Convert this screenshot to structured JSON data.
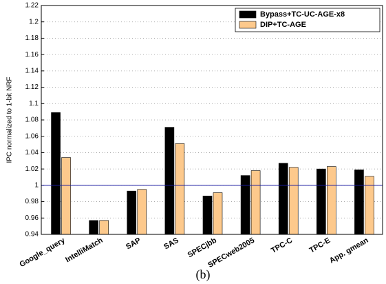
{
  "chart_data": {
    "type": "bar",
    "ylabel": "IPC normalized to 1-bit NRF",
    "caption": "(b)",
    "categories": [
      "Google_query",
      "IntelliMatch",
      "SAP",
      "SAS",
      "SPECjbb",
      "SPECweb2005",
      "TPC-C",
      "TPC-E",
      "App. gmean"
    ],
    "series": [
      {
        "name": "Bypass+TC-UC-AGE-x8",
        "color": "#000000",
        "values": [
          1.089,
          0.957,
          0.993,
          1.071,
          0.987,
          1.012,
          1.027,
          1.02,
          1.019
        ]
      },
      {
        "name": "DIP+TC-AGE",
        "color": "#fdc98c",
        "values": [
          1.034,
          0.957,
          0.995,
          1.051,
          0.991,
          1.018,
          1.022,
          1.023,
          1.011
        ]
      }
    ],
    "ylim": [
      0.94,
      1.22
    ],
    "yticks": [
      0.94,
      0.96,
      0.98,
      1,
      1.02,
      1.04,
      1.06,
      1.08,
      1.1,
      1.12,
      1.14,
      1.16,
      1.18,
      1.2,
      1.22
    ],
    "grid": true,
    "reference_line": 1,
    "reference_color": "#1a1aa0",
    "legend": "upper right"
  }
}
